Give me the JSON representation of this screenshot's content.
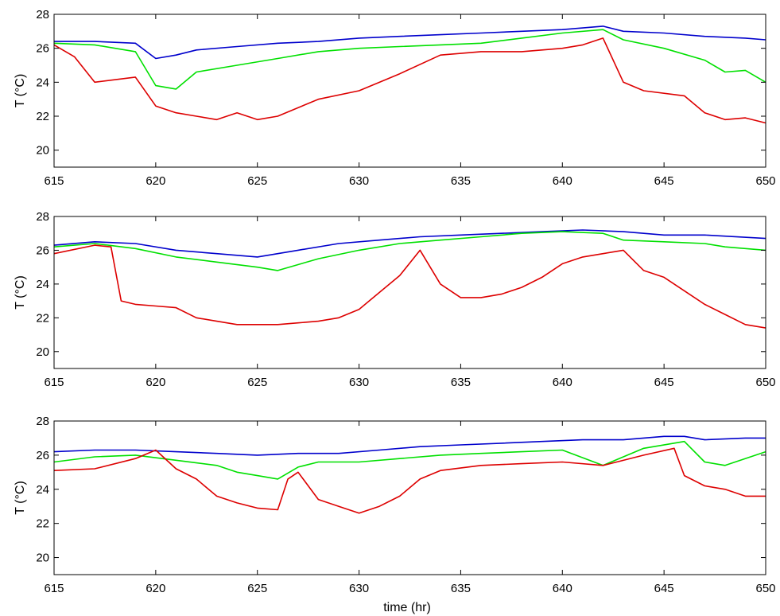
{
  "colors": {
    "blue": "#0000cc",
    "green": "#00e000",
    "red": "#dd0000",
    "axis": "#000000"
  },
  "xlabel": "time (hr)",
  "chart_data": [
    {
      "type": "line",
      "ylabel": "T (°C)",
      "xlim": [
        615,
        650
      ],
      "ylim": [
        19,
        28
      ],
      "xticks": [
        615,
        620,
        625,
        630,
        635,
        640,
        645,
        650
      ],
      "yticks": [
        20,
        22,
        24,
        26,
        28
      ],
      "grid": false,
      "series": [
        {
          "color": "blue",
          "x": [
            615,
            617,
            619,
            620,
            621,
            622,
            624,
            626,
            628,
            630,
            632,
            634,
            636,
            638,
            640,
            642,
            643,
            645,
            647,
            649,
            650
          ],
          "y": [
            26.4,
            26.4,
            26.3,
            25.4,
            25.6,
            25.9,
            26.1,
            26.3,
            26.4,
            26.6,
            26.7,
            26.8,
            26.9,
            27.0,
            27.1,
            27.3,
            27.0,
            26.9,
            26.7,
            26.6,
            26.5
          ]
        },
        {
          "color": "green",
          "x": [
            615,
            617,
            619,
            620,
            621,
            622,
            624,
            626,
            628,
            630,
            632,
            634,
            636,
            638,
            640,
            642,
            643,
            645,
            647,
            648,
            649,
            650
          ],
          "y": [
            26.3,
            26.2,
            25.8,
            23.8,
            23.6,
            24.6,
            25.0,
            25.4,
            25.8,
            26.0,
            26.1,
            26.2,
            26.3,
            26.6,
            26.9,
            27.1,
            26.5,
            26.0,
            25.3,
            24.6,
            24.7,
            24.0
          ]
        },
        {
          "color": "red",
          "x": [
            615,
            616,
            617,
            619,
            620,
            621,
            622,
            623,
            624,
            625,
            626,
            628,
            630,
            632,
            634,
            636,
            638,
            640,
            641,
            642,
            643,
            644,
            646,
            647,
            648,
            649,
            650
          ],
          "y": [
            26.2,
            25.5,
            24.0,
            24.3,
            22.6,
            22.2,
            22.0,
            21.8,
            22.2,
            21.8,
            22.0,
            23.0,
            23.5,
            24.5,
            25.6,
            25.8,
            25.8,
            26.0,
            26.2,
            26.6,
            24.0,
            23.5,
            23.2,
            22.2,
            21.8,
            21.9,
            21.6
          ]
        }
      ]
    },
    {
      "type": "line",
      "ylabel": "T (°C)",
      "xlim": [
        615,
        650
      ],
      "ylim": [
        19,
        28
      ],
      "xticks": [
        615,
        620,
        625,
        630,
        635,
        640,
        645,
        650
      ],
      "yticks": [
        20,
        22,
        24,
        26,
        28
      ],
      "grid": false,
      "series": [
        {
          "color": "blue",
          "x": [
            615,
            617,
            619,
            621,
            623,
            625,
            627,
            629,
            631,
            633,
            635,
            637,
            639,
            641,
            643,
            645,
            647,
            650
          ],
          "y": [
            26.3,
            26.5,
            26.4,
            26.0,
            25.8,
            25.6,
            26.0,
            26.4,
            26.6,
            26.8,
            26.9,
            27.0,
            27.1,
            27.2,
            27.1,
            26.9,
            26.9,
            26.7
          ]
        },
        {
          "color": "green",
          "x": [
            615,
            617,
            619,
            621,
            623,
            625,
            626,
            628,
            630,
            632,
            634,
            636,
            638,
            640,
            642,
            643,
            645,
            647,
            648,
            650
          ],
          "y": [
            26.2,
            26.4,
            26.1,
            25.6,
            25.3,
            25.0,
            24.8,
            25.5,
            26.0,
            26.4,
            26.6,
            26.8,
            27.0,
            27.1,
            27.0,
            26.6,
            26.5,
            26.4,
            26.2,
            26.0
          ]
        },
        {
          "color": "red",
          "x": [
            615,
            617,
            617.8,
            618.3,
            619,
            620,
            621,
            622,
            623,
            624,
            625,
            626,
            627,
            628,
            629,
            630,
            631,
            632,
            633,
            634,
            635,
            636,
            637,
            638,
            639,
            640,
            641,
            642,
            643,
            644,
            645,
            646,
            647,
            648,
            649,
            650
          ],
          "y": [
            25.8,
            26.3,
            26.2,
            23.0,
            22.8,
            22.7,
            22.6,
            22.0,
            21.8,
            21.6,
            21.6,
            21.6,
            21.7,
            21.8,
            22.0,
            22.5,
            23.5,
            24.5,
            26.0,
            24.0,
            23.2,
            23.2,
            23.4,
            23.8,
            24.4,
            25.2,
            25.6,
            25.8,
            26.0,
            24.8,
            24.4,
            23.6,
            22.8,
            22.2,
            21.6,
            21.4
          ]
        }
      ]
    },
    {
      "type": "line",
      "ylabel": "T (°C)",
      "xlim": [
        615,
        650
      ],
      "ylim": [
        19,
        28
      ],
      "xticks": [
        615,
        620,
        625,
        630,
        635,
        640,
        645,
        650
      ],
      "yticks": [
        20,
        22,
        24,
        26,
        28
      ],
      "grid": false,
      "series": [
        {
          "color": "blue",
          "x": [
            615,
            617,
            619,
            621,
            623,
            625,
            627,
            629,
            631,
            633,
            635,
            637,
            639,
            641,
            643,
            645,
            646,
            647,
            649,
            650
          ],
          "y": [
            26.2,
            26.3,
            26.3,
            26.2,
            26.1,
            26.0,
            26.1,
            26.1,
            26.3,
            26.5,
            26.6,
            26.7,
            26.8,
            26.9,
            26.9,
            27.1,
            27.1,
            26.9,
            27.0,
            27.0
          ]
        },
        {
          "color": "green",
          "x": [
            615,
            617,
            619,
            621,
            623,
            624,
            625,
            626,
            627,
            628,
            630,
            632,
            634,
            636,
            638,
            640,
            642,
            644,
            646,
            647,
            648,
            650
          ],
          "y": [
            25.6,
            25.9,
            26.0,
            25.7,
            25.4,
            25.0,
            24.8,
            24.6,
            25.3,
            25.6,
            25.6,
            25.8,
            26.0,
            26.1,
            26.2,
            26.3,
            25.4,
            26.4,
            26.8,
            25.6,
            25.4,
            26.2
          ]
        },
        {
          "color": "red",
          "x": [
            615,
            617,
            619,
            620,
            621,
            622,
            623,
            624,
            625,
            626,
            626.5,
            627,
            628,
            629,
            630,
            631,
            632,
            633,
            634,
            636,
            638,
            640,
            642,
            644,
            645.5,
            646,
            647,
            648,
            649,
            650
          ],
          "y": [
            25.1,
            25.2,
            25.8,
            26.3,
            25.2,
            24.6,
            23.6,
            23.2,
            22.9,
            22.8,
            24.6,
            25.0,
            23.4,
            23.0,
            22.6,
            23.0,
            23.6,
            24.6,
            25.1,
            25.4,
            25.5,
            25.6,
            25.4,
            26.0,
            26.4,
            24.8,
            24.2,
            24.0,
            23.6,
            23.6
          ]
        }
      ]
    }
  ]
}
